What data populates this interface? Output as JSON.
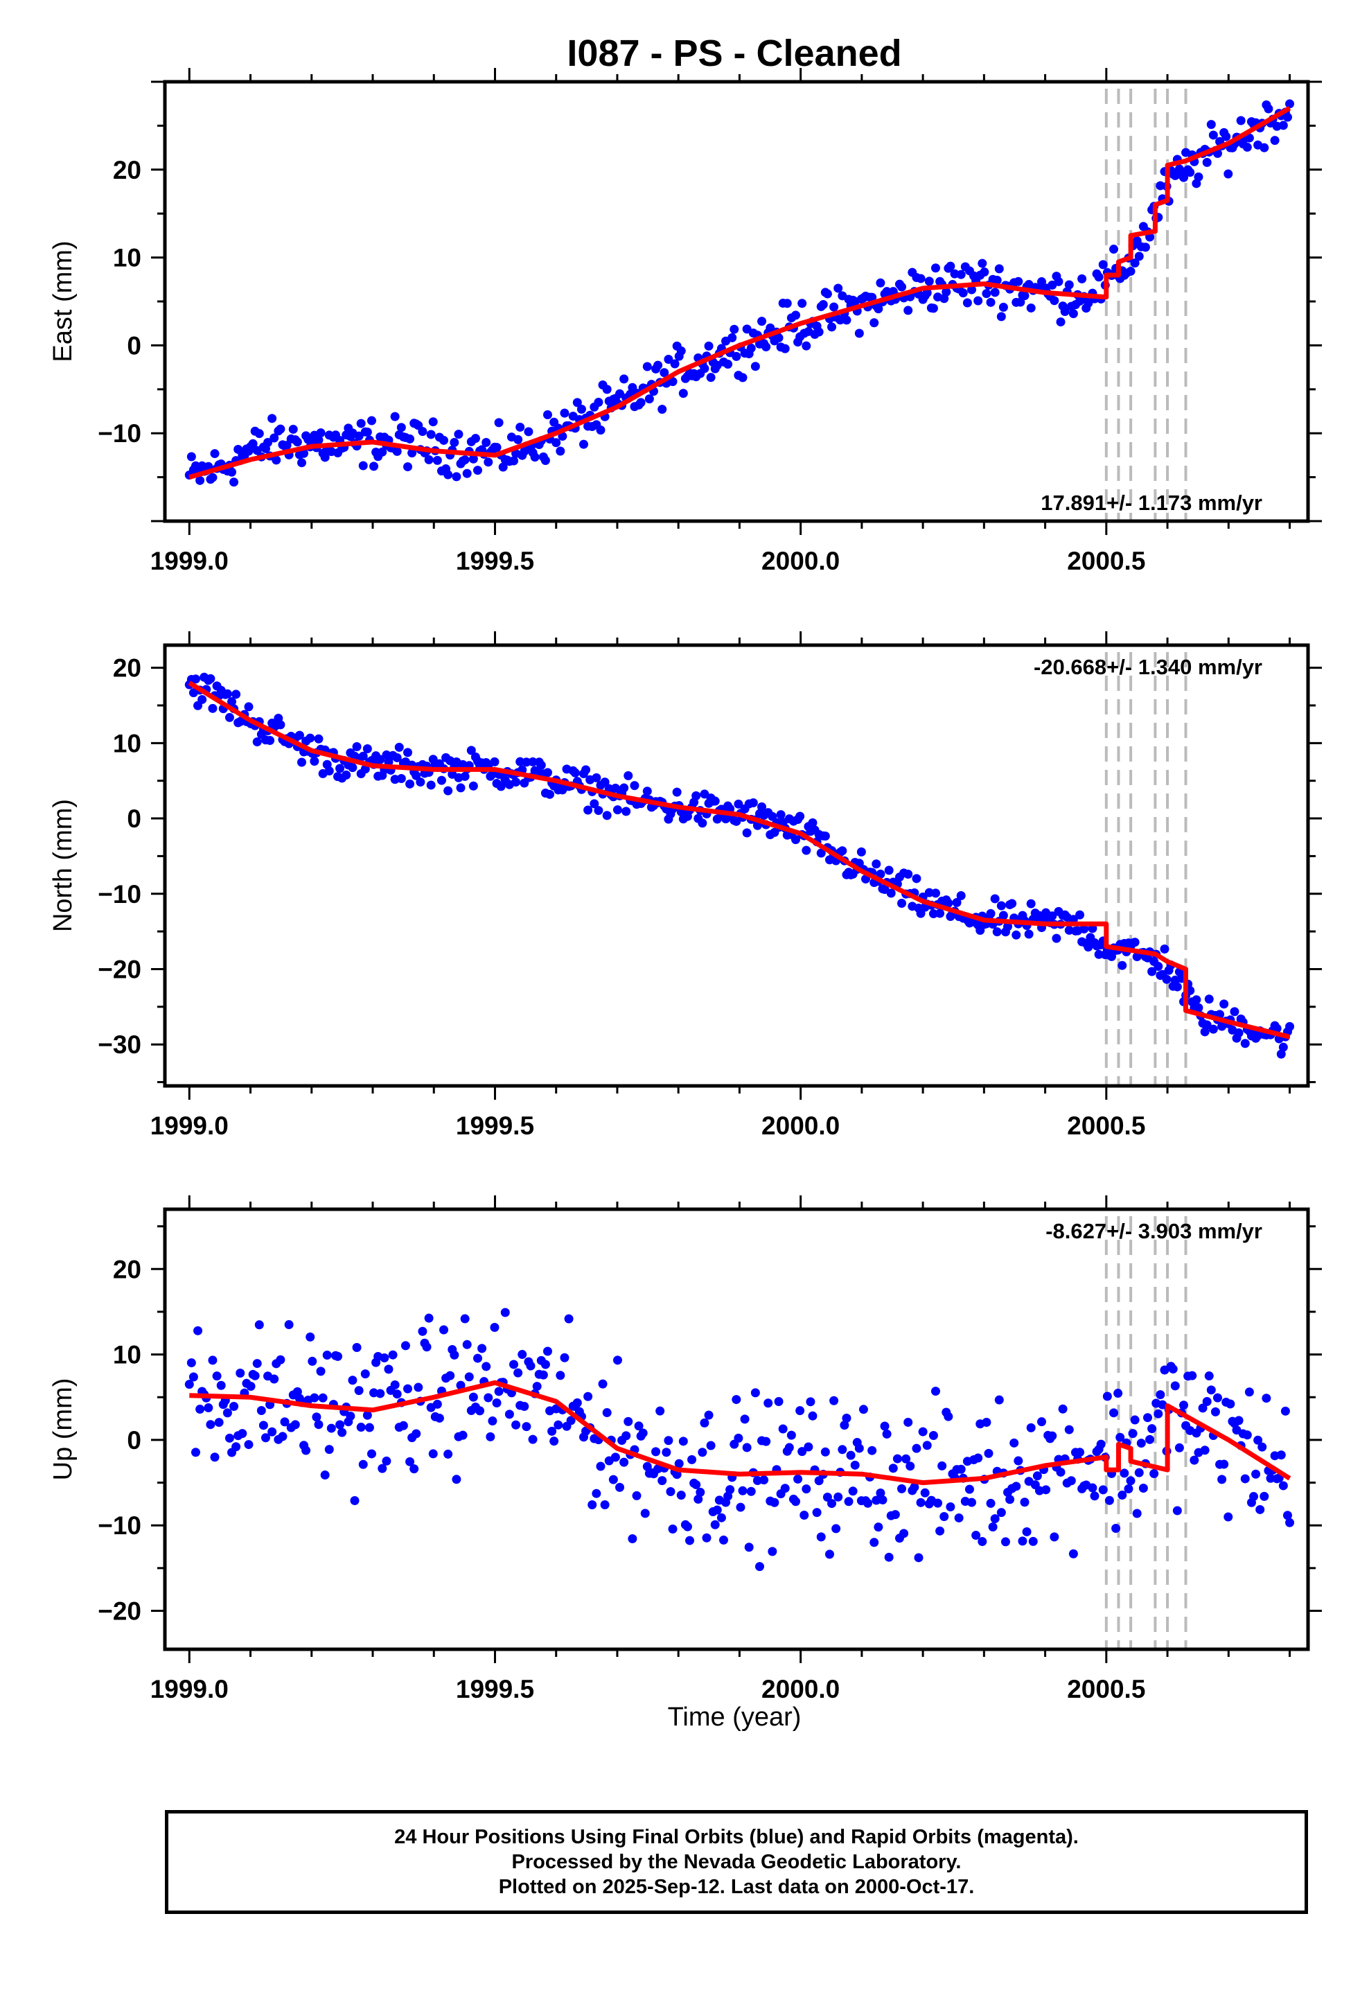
{
  "title": "I087  - PS - Cleaned",
  "xlabel": "Time (year)",
  "x_ticks": [
    "1999.0",
    "1999.5",
    "2000.0",
    "2000.5"
  ],
  "footer": {
    "line1": "24 Hour Positions Using Final Orbits (blue) and Rapid Orbits (magenta).",
    "line2": "Processed by the Nevada Geodetic Laboratory.",
    "line3": "Plotted on 2025-Sep-12. Last data on 2000-Oct-17."
  },
  "colors": {
    "data": "#0000ff",
    "model": "#ff0000",
    "event_lines": "#bbbbbb"
  },
  "chart_data": [
    {
      "type": "scatter",
      "ylabel": "East (mm)",
      "rate_label": "17.891+/- 1.173 mm/yr",
      "xlim": [
        1998.96,
        2000.83
      ],
      "ylim": [
        -20,
        30
      ],
      "yticks": [
        -10,
        0,
        10,
        20
      ],
      "event_lines": [
        2000.5,
        2000.52,
        2000.54,
        2000.58,
        2000.6,
        2000.63
      ],
      "model": [
        [
          1999.0,
          -15
        ],
        [
          1999.1,
          -13
        ],
        [
          1999.2,
          -11.5
        ],
        [
          1999.3,
          -11
        ],
        [
          1999.4,
          -12
        ],
        [
          1999.5,
          -12.5
        ],
        [
          1999.6,
          -10
        ],
        [
          1999.7,
          -7
        ],
        [
          1999.8,
          -3
        ],
        [
          1999.9,
          0
        ],
        [
          2000.0,
          2.5
        ],
        [
          2000.1,
          4.5
        ],
        [
          2000.2,
          6.5
        ],
        [
          2000.3,
          7
        ],
        [
          2000.4,
          6
        ],
        [
          2000.5,
          5.5
        ],
        [
          2000.5,
          8
        ],
        [
          2000.52,
          8
        ],
        [
          2000.52,
          9.5
        ],
        [
          2000.54,
          10
        ],
        [
          2000.54,
          12.5
        ],
        [
          2000.58,
          13
        ],
        [
          2000.58,
          16
        ],
        [
          2000.6,
          16.5
        ],
        [
          2000.6,
          20.5
        ],
        [
          2000.63,
          21
        ],
        [
          2000.7,
          23
        ],
        [
          2000.8,
          27
        ]
      ],
      "points": [
        [
          1999.0,
          -15
        ],
        [
          1999.05,
          -14
        ],
        [
          1999.1,
          -12
        ],
        [
          1999.15,
          -11
        ],
        [
          1999.2,
          -11
        ],
        [
          1999.25,
          -11.5
        ],
        [
          1999.3,
          -11
        ],
        [
          1999.35,
          -11
        ],
        [
          1999.4,
          -11.5
        ],
        [
          1999.45,
          -12
        ],
        [
          1999.5,
          -12.5
        ],
        [
          1999.55,
          -11.5
        ],
        [
          1999.6,
          -10
        ],
        [
          1999.65,
          -8.5
        ],
        [
          1999.7,
          -7
        ],
        [
          1999.75,
          -5
        ],
        [
          1999.8,
          -3
        ],
        [
          1999.85,
          -1.5
        ],
        [
          1999.9,
          0
        ],
        [
          1999.95,
          1.2
        ],
        [
          2000.0,
          2.5
        ],
        [
          2000.05,
          3.5
        ],
        [
          2000.1,
          4.5
        ],
        [
          2000.15,
          5.5
        ],
        [
          2000.2,
          6.5
        ],
        [
          2000.25,
          7
        ],
        [
          2000.3,
          7
        ],
        [
          2000.35,
          6.5
        ],
        [
          2000.4,
          6
        ],
        [
          2000.45,
          5.8
        ],
        [
          2000.5,
          7
        ],
        [
          2000.53,
          9
        ],
        [
          2000.56,
          12
        ],
        [
          2000.6,
          18
        ],
        [
          2000.65,
          21
        ],
        [
          2000.7,
          23
        ],
        [
          2000.75,
          25
        ],
        [
          2000.8,
          27
        ]
      ],
      "scatter_amp": 2.5
    },
    {
      "type": "scatter",
      "ylabel": "North (mm)",
      "rate_label": "-20.668+/- 1.340 mm/yr",
      "xlim": [
        1998.96,
        2000.83
      ],
      "ylim": [
        -35.5,
        23
      ],
      "yticks": [
        -30,
        -20,
        -10,
        0,
        10,
        20
      ],
      "event_lines": [
        2000.5,
        2000.52,
        2000.54,
        2000.58,
        2000.6,
        2000.63
      ],
      "model": [
        [
          1999.0,
          18
        ],
        [
          1999.1,
          13
        ],
        [
          1999.2,
          9
        ],
        [
          1999.3,
          7
        ],
        [
          1999.4,
          6.5
        ],
        [
          1999.5,
          6.5
        ],
        [
          1999.6,
          5
        ],
        [
          1999.7,
          3
        ],
        [
          1999.8,
          1.5
        ],
        [
          1999.9,
          0.5
        ],
        [
          2000.0,
          -2
        ],
        [
          2000.1,
          -7
        ],
        [
          2000.2,
          -11
        ],
        [
          2000.3,
          -13.5
        ],
        [
          2000.4,
          -14
        ],
        [
          2000.5,
          -14
        ],
        [
          2000.5,
          -17
        ],
        [
          2000.58,
          -18
        ],
        [
          2000.6,
          -19
        ],
        [
          2000.63,
          -20
        ],
        [
          2000.63,
          -25.5
        ],
        [
          2000.7,
          -27
        ],
        [
          2000.8,
          -29
        ]
      ],
      "points": [
        [
          1999.0,
          18
        ],
        [
          1999.05,
          16
        ],
        [
          1999.1,
          13
        ],
        [
          1999.15,
          11
        ],
        [
          1999.2,
          9
        ],
        [
          1999.25,
          7.5
        ],
        [
          1999.3,
          7
        ],
        [
          1999.35,
          6.8
        ],
        [
          1999.4,
          6.5
        ],
        [
          1999.45,
          6.5
        ],
        [
          1999.5,
          6.5
        ],
        [
          1999.55,
          6
        ],
        [
          1999.6,
          5
        ],
        [
          1999.65,
          4
        ],
        [
          1999.7,
          3
        ],
        [
          1999.75,
          2
        ],
        [
          1999.8,
          1.5
        ],
        [
          1999.85,
          1
        ],
        [
          1999.9,
          0.5
        ],
        [
          1999.95,
          -0.5
        ],
        [
          2000.0,
          -2
        ],
        [
          2000.05,
          -4.5
        ],
        [
          2000.1,
          -7
        ],
        [
          2000.15,
          -9
        ],
        [
          2000.2,
          -11
        ],
        [
          2000.25,
          -12.5
        ],
        [
          2000.3,
          -13.5
        ],
        [
          2000.35,
          -13.8
        ],
        [
          2000.4,
          -14
        ],
        [
          2000.45,
          -14
        ],
        [
          2000.5,
          -17
        ],
        [
          2000.55,
          -18
        ],
        [
          2000.6,
          -19.5
        ],
        [
          2000.65,
          -26
        ],
        [
          2000.7,
          -27
        ],
        [
          2000.75,
          -28
        ],
        [
          2000.8,
          -29.5
        ]
      ],
      "scatter_amp": 2.2
    },
    {
      "type": "scatter",
      "ylabel": "Up (mm)",
      "rate_label": "-8.627+/- 3.903 mm/yr",
      "xlim": [
        1998.96,
        2000.83
      ],
      "ylim": [
        -24.5,
        27
      ],
      "yticks": [
        -20,
        -10,
        0,
        10,
        20
      ],
      "event_lines": [
        2000.5,
        2000.52,
        2000.54,
        2000.58,
        2000.6,
        2000.63
      ],
      "model": [
        [
          1999.0,
          5.2
        ],
        [
          1999.1,
          5
        ],
        [
          1999.2,
          4
        ],
        [
          1999.3,
          3.5
        ],
        [
          1999.4,
          5
        ],
        [
          1999.5,
          6.7
        ],
        [
          1999.6,
          4.5
        ],
        [
          1999.7,
          -1
        ],
        [
          1999.8,
          -3.5
        ],
        [
          1999.9,
          -4
        ],
        [
          2000.0,
          -3.8
        ],
        [
          2000.1,
          -4
        ],
        [
          2000.2,
          -5
        ],
        [
          2000.3,
          -4.5
        ],
        [
          2000.4,
          -3
        ],
        [
          2000.5,
          -2
        ],
        [
          2000.5,
          -3.5
        ],
        [
          2000.52,
          -3.5
        ],
        [
          2000.52,
          -0.5
        ],
        [
          2000.54,
          -1
        ],
        [
          2000.54,
          -2.5
        ],
        [
          2000.6,
          -3.5
        ],
        [
          2000.6,
          4
        ],
        [
          2000.7,
          0
        ],
        [
          2000.8,
          -4.5
        ]
      ],
      "points": [
        [
          1999.0,
          5
        ],
        [
          1999.1,
          5
        ],
        [
          1999.2,
          4
        ],
        [
          1999.3,
          3.5
        ],
        [
          1999.4,
          5
        ],
        [
          1999.5,
          6.5
        ],
        [
          1999.6,
          4.5
        ],
        [
          1999.7,
          -1
        ],
        [
          1999.8,
          -3.5
        ],
        [
          1999.9,
          -4
        ],
        [
          2000.0,
          -3.8
        ],
        [
          2000.1,
          -4
        ],
        [
          2000.2,
          -5
        ],
        [
          2000.3,
          -4.5
        ],
        [
          2000.4,
          -3
        ],
        [
          2000.5,
          -2
        ],
        [
          2000.55,
          -2
        ],
        [
          2000.6,
          3
        ],
        [
          2000.7,
          0
        ],
        [
          2000.8,
          -4.5
        ]
      ],
      "scatter_amp": 8
    }
  ]
}
